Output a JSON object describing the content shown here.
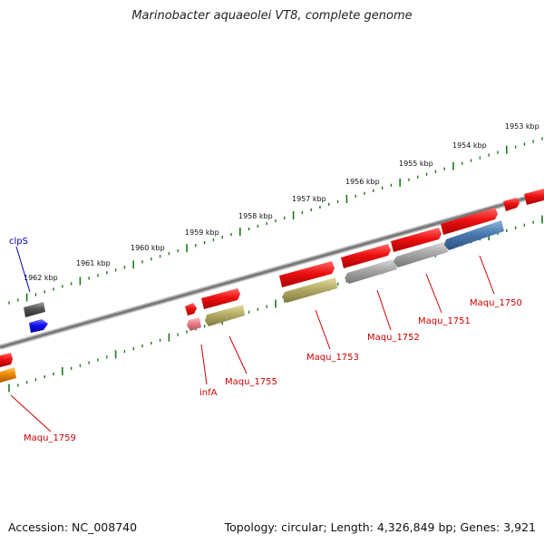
{
  "title": "Marinobacter aquaeolei VT8, complete genome",
  "footer": {
    "accession": "Accession: NC_008740",
    "summary": "Topology: circular; Length: 4,326,849 bp; Genes: 3,921"
  },
  "colors": {
    "backbone": "#8a8a8a",
    "ticks": "#1a7a1a",
    "red": "#ee1111",
    "gray": "#9a9a9a",
    "olive": "#b4ac66",
    "blue": "#4a7ab0",
    "pink": "#e87f88",
    "orange": "#ee8a00",
    "darkgray": "#555555",
    "brightblue": "#1111ee"
  },
  "scale": {
    "tick_labels": [
      "1962 kbp",
      "1961 kbp",
      "1960 kbp",
      "1959 kbp",
      "1958 kbp",
      "1957 kbp",
      "1956 kbp",
      "1955 kbp",
      "1954 kbp",
      "1953 kbp"
    ]
  },
  "genes": [
    {
      "name": "clpS"
    },
    {
      "name": "Maqu_1759"
    },
    {
      "name": "infA"
    },
    {
      "name": "Maqu_1755"
    },
    {
      "name": "Maqu_1753"
    },
    {
      "name": "Maqu_1752"
    },
    {
      "name": "Maqu_1751"
    },
    {
      "name": "Maqu_1750"
    }
  ]
}
